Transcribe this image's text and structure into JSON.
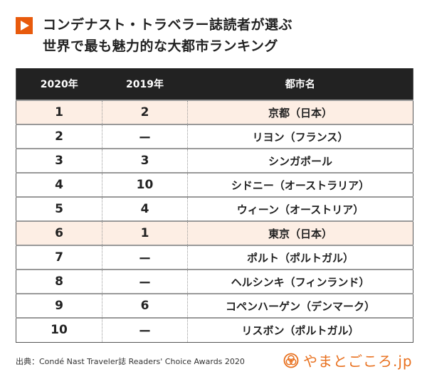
{
  "title": {
    "icon": "play-triangle-icon",
    "line1": "コンデナスト・トラベラー誌読者が選ぶ",
    "line2": "世界で最も魅力的な大都市ランキング"
  },
  "colors": {
    "accent": "#e85a0c",
    "header_bg": "#222222",
    "highlight_row": "#fdeee4",
    "logo": "#e8701e"
  },
  "table": {
    "headers": [
      "2020年",
      "2019年",
      "都市名"
    ],
    "rows": [
      {
        "rank2020": "1",
        "rank2019": "2",
        "city": "京都（日本）",
        "highlight": true
      },
      {
        "rank2020": "2",
        "rank2019": "ー",
        "city": "リヨン（フランス）",
        "highlight": false
      },
      {
        "rank2020": "3",
        "rank2019": "3",
        "city": "シンガポール",
        "highlight": false
      },
      {
        "rank2020": "4",
        "rank2019": "10",
        "city": "シドニー（オーストラリア）",
        "highlight": false
      },
      {
        "rank2020": "5",
        "rank2019": "4",
        "city": "ウィーン（オーストリア）",
        "highlight": false
      },
      {
        "rank2020": "6",
        "rank2019": "1",
        "city": "東京（日本）",
        "highlight": true
      },
      {
        "rank2020": "7",
        "rank2019": "ー",
        "city": "ポルト（ポルトガル）",
        "highlight": false
      },
      {
        "rank2020": "8",
        "rank2019": "ー",
        "city": "ヘルシンキ（フィンランド）",
        "highlight": false
      },
      {
        "rank2020": "9",
        "rank2019": "6",
        "city": "コペンハーゲン（デンマーク）",
        "highlight": false
      },
      {
        "rank2020": "10",
        "rank2019": "ー",
        "city": "リスボン（ポルトガル）",
        "highlight": false
      }
    ]
  },
  "footer": {
    "source": "出典：Condé Nast Traveler誌 Readers' Choice Awards 2020",
    "logo_icon": "yamatogokoro-logo-icon",
    "logo_text": "やまとごころ.jp"
  }
}
